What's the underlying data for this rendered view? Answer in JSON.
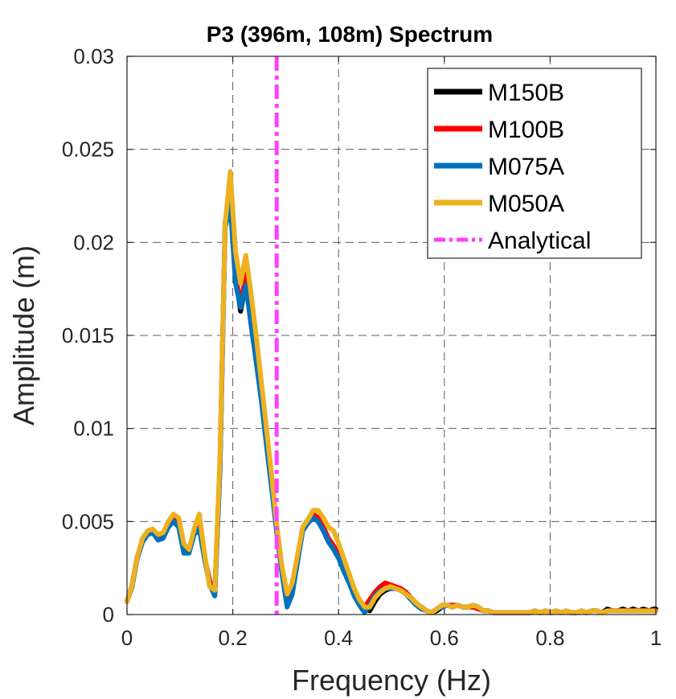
{
  "chart_data": {
    "type": "line",
    "title": "P3 (396m, 108m) Spectrum",
    "xlabel": "Frequency (Hz)",
    "ylabel": "Amplitude (m)",
    "xlim": [
      0,
      1
    ],
    "ylim": [
      0,
      0.03
    ],
    "xticks": [
      0,
      0.2,
      0.4,
      0.6,
      0.8,
      1
    ],
    "xtick_labels": [
      "0",
      "0.2",
      "0.4",
      "0.6",
      "0.8",
      "1"
    ],
    "yticks": [
      0,
      0.005,
      0.01,
      0.015,
      0.02,
      0.025,
      0.03
    ],
    "ytick_labels": [
      "0",
      "0.005",
      "0.01",
      "0.015",
      "0.02",
      "0.025",
      "0.03"
    ],
    "grid": true,
    "legend_position": "top-right",
    "analytical_x": 0.283,
    "x": [
      0,
      0.0098,
      0.0195,
      0.0293,
      0.0391,
      0.0488,
      0.0586,
      0.0684,
      0.0781,
      0.0879,
      0.0977,
      0.1074,
      0.1172,
      0.127,
      0.1367,
      0.1465,
      0.1563,
      0.166,
      0.1758,
      0.1855,
      0.1953,
      0.2051,
      0.2148,
      0.2246,
      0.2344,
      0.2441,
      0.2539,
      0.2637,
      0.2734,
      0.2832,
      0.293,
      0.3027,
      0.3125,
      0.3223,
      0.332,
      0.3418,
      0.3516,
      0.3613,
      0.3711,
      0.3809,
      0.3906,
      0.4004,
      0.4102,
      0.4199,
      0.4297,
      0.4395,
      0.4492,
      0.459,
      0.4688,
      0.4785,
      0.4883,
      0.498,
      0.5078,
      0.5176,
      0.5273,
      0.5371,
      0.5469,
      0.5566,
      0.5664,
      0.5762,
      0.5859,
      0.5957,
      0.6055,
      0.6152,
      0.625,
      0.6348,
      0.6445,
      0.6543,
      0.6641,
      0.6738,
      0.6836,
      0.6934,
      0.7031,
      0.7129,
      0.7227,
      0.7324,
      0.7422,
      0.752,
      0.7617,
      0.7715,
      0.7813,
      0.791,
      0.8008,
      0.8105,
      0.8203,
      0.8301,
      0.8398,
      0.8496,
      0.8594,
      0.8691,
      0.8789,
      0.8887,
      0.8984,
      0.9082,
      0.918,
      0.9277,
      0.9375,
      0.9473,
      0.957,
      0.9668,
      0.9766,
      0.9863,
      0.9961,
      1.0
    ],
    "series": [
      {
        "name": "M150B",
        "color": "#000000",
        "values": [
          0.0007,
          0.0016,
          0.0031,
          0.004,
          0.0044,
          0.0044,
          0.0041,
          0.0042,
          0.0048,
          0.0051,
          0.0049,
          0.0034,
          0.0034,
          0.0044,
          0.0047,
          0.0031,
          0.0018,
          0.0011,
          0.008,
          0.021,
          0.0222,
          0.0182,
          0.0163,
          0.0178,
          0.0158,
          0.0138,
          0.0117,
          0.0093,
          0.007,
          0.0046,
          0.0024,
          0.0005,
          0.0012,
          0.0029,
          0.0045,
          0.0049,
          0.0053,
          0.0052,
          0.0046,
          0.004,
          0.0036,
          0.0031,
          0.0025,
          0.0019,
          0.0012,
          0.0006,
          0.0004,
          0.0002,
          0.0007,
          0.0011,
          0.0013,
          0.0014,
          0.0014,
          0.0013,
          0.0011,
          0.0009,
          0.0006,
          0.0004,
          0.0002,
          0.0001,
          0.0002,
          0.0004,
          0.0005,
          0.0004,
          0.0005,
          0.0004,
          0.0004,
          0.0005,
          0.0004,
          0.0002,
          0.0002,
          0.0001,
          0.0001,
          0.0001,
          0.0001,
          0.0001,
          0.0001,
          0.0001,
          0.0001,
          0.0002,
          0.0001,
          0.0002,
          0.0001,
          0.0002,
          0.0001,
          0.0002,
          0.0001,
          0.0001,
          0.0002,
          0.0001,
          0.0002,
          0.0002,
          0.0001,
          0.0003,
          0.0002,
          0.0002,
          0.0003,
          0.0002,
          0.0003,
          0.0002,
          0.0003,
          0.0002,
          0.0003,
          0.0003
        ]
      },
      {
        "name": "M100B",
        "color": "#ff0000",
        "values": [
          0.0007,
          0.0016,
          0.0031,
          0.004,
          0.0044,
          0.0045,
          0.0042,
          0.0042,
          0.0049,
          0.0052,
          0.0049,
          0.0035,
          0.0034,
          0.0045,
          0.0048,
          0.0031,
          0.0018,
          0.0012,
          0.0082,
          0.0211,
          0.0224,
          0.0183,
          0.0166,
          0.0183,
          0.016,
          0.014,
          0.0118,
          0.0094,
          0.007,
          0.0046,
          0.0024,
          0.0006,
          0.0012,
          0.003,
          0.0046,
          0.005,
          0.0054,
          0.0052,
          0.0047,
          0.0041,
          0.0037,
          0.0032,
          0.0026,
          0.002,
          0.0013,
          0.0007,
          0.0004,
          0.0008,
          0.0012,
          0.0015,
          0.0017,
          0.0016,
          0.0015,
          0.0014,
          0.0012,
          0.0009,
          0.0006,
          0.0004,
          0.0002,
          0.0001,
          0.0003,
          0.0005,
          0.0005,
          0.0005,
          0.0005,
          0.0004,
          0.0004,
          0.0004,
          0.0003,
          0.0002,
          0.0002,
          0.0001,
          0.0001,
          0.0001,
          0.0001,
          0.0001,
          0.0001,
          0.0001,
          0.0001,
          0.0002,
          0.0001,
          0.0002,
          0.0001,
          0.0002,
          0.0001,
          0.0002,
          0.0001,
          0.0001,
          0.0002,
          0.0001,
          0.0002,
          0.0002,
          0.0001,
          0.0002,
          0.0002,
          0.0002,
          0.0002,
          0.0002,
          0.0002,
          0.0002,
          0.0002,
          0.0002,
          0.0002,
          0.0002
        ]
      },
      {
        "name": "M075A",
        "color": "#0072bd",
        "values": [
          0.0007,
          0.0015,
          0.003,
          0.0039,
          0.0043,
          0.0044,
          0.004,
          0.0041,
          0.0047,
          0.005,
          0.0047,
          0.0033,
          0.0033,
          0.0043,
          0.0046,
          0.003,
          0.0016,
          0.001,
          0.0078,
          0.0208,
          0.022,
          0.0178,
          0.0165,
          0.0177,
          0.0156,
          0.0136,
          0.0115,
          0.0091,
          0.0068,
          0.0044,
          0.0022,
          0.0004,
          0.0011,
          0.0028,
          0.0045,
          0.0049,
          0.0052,
          0.005,
          0.0045,
          0.0039,
          0.0035,
          0.003,
          0.0023,
          0.0017,
          0.001,
          0.0005,
          0.0001,
          0.0005,
          0.001,
          0.0013,
          0.0014,
          0.0014,
          0.0014,
          0.0013,
          0.0011,
          0.0008,
          0.0005,
          0.0003,
          0.0002,
          0.0001,
          0.0003,
          0.0004,
          0.0005,
          0.0004,
          0.0005,
          0.0004,
          0.0004,
          0.0005,
          0.0004,
          0.0002,
          0.0002,
          0.0001,
          0.0001,
          0.0001,
          0.0001,
          0.0001,
          0.0001,
          0.0001,
          0.0001,
          0.0002,
          0.0001,
          0.0002,
          0.0001,
          0.0002,
          0.0001,
          0.0002,
          0.0001,
          0.0001,
          0.0002,
          0.0001,
          0.0002,
          0.0002,
          0.0001,
          0.0002,
          0.0002,
          0.0002,
          0.0002,
          0.0002,
          0.0002,
          0.0002,
          0.0002,
          0.0002,
          0.0002,
          0.0002
        ]
      },
      {
        "name": "M050A",
        "color": "#edb120",
        "values": [
          0.0007,
          0.0016,
          0.0031,
          0.0041,
          0.0045,
          0.0046,
          0.0043,
          0.0044,
          0.005,
          0.0054,
          0.0052,
          0.0038,
          0.0035,
          0.0046,
          0.0054,
          0.0033,
          0.0015,
          0.0013,
          0.0085,
          0.021,
          0.0238,
          0.0195,
          0.0178,
          0.0193,
          0.0173,
          0.015,
          0.0125,
          0.01,
          0.0075,
          0.0048,
          0.0026,
          0.0011,
          0.0017,
          0.0032,
          0.0047,
          0.0051,
          0.0056,
          0.0056,
          0.0052,
          0.0047,
          0.0045,
          0.0038,
          0.003,
          0.0022,
          0.0014,
          0.0008,
          0.0004,
          0.0004,
          0.0009,
          0.0012,
          0.0014,
          0.0015,
          0.0014,
          0.0013,
          0.0011,
          0.0009,
          0.0006,
          0.0004,
          0.0002,
          0.0001,
          0.0003,
          0.0005,
          0.0005,
          0.0004,
          0.0005,
          0.0004,
          0.0004,
          0.0005,
          0.0004,
          0.0002,
          0.0002,
          0.0001,
          0.0001,
          0.0001,
          0.0001,
          0.0001,
          0.0001,
          0.0001,
          0.0001,
          0.0002,
          0.0001,
          0.0002,
          0.0001,
          0.0002,
          0.0001,
          0.0002,
          0.0001,
          0.0001,
          0.0002,
          0.0001,
          0.0002,
          0.0002,
          0.0001,
          0.0002,
          0.0002,
          0.0002,
          0.0002,
          0.0002,
          0.0002,
          0.0002,
          0.0002,
          0.0002,
          0.0002,
          0.0002
        ]
      }
    ],
    "analytical": {
      "name": "Analytical",
      "color": "#ff40ff",
      "style": "dash-dot"
    }
  }
}
